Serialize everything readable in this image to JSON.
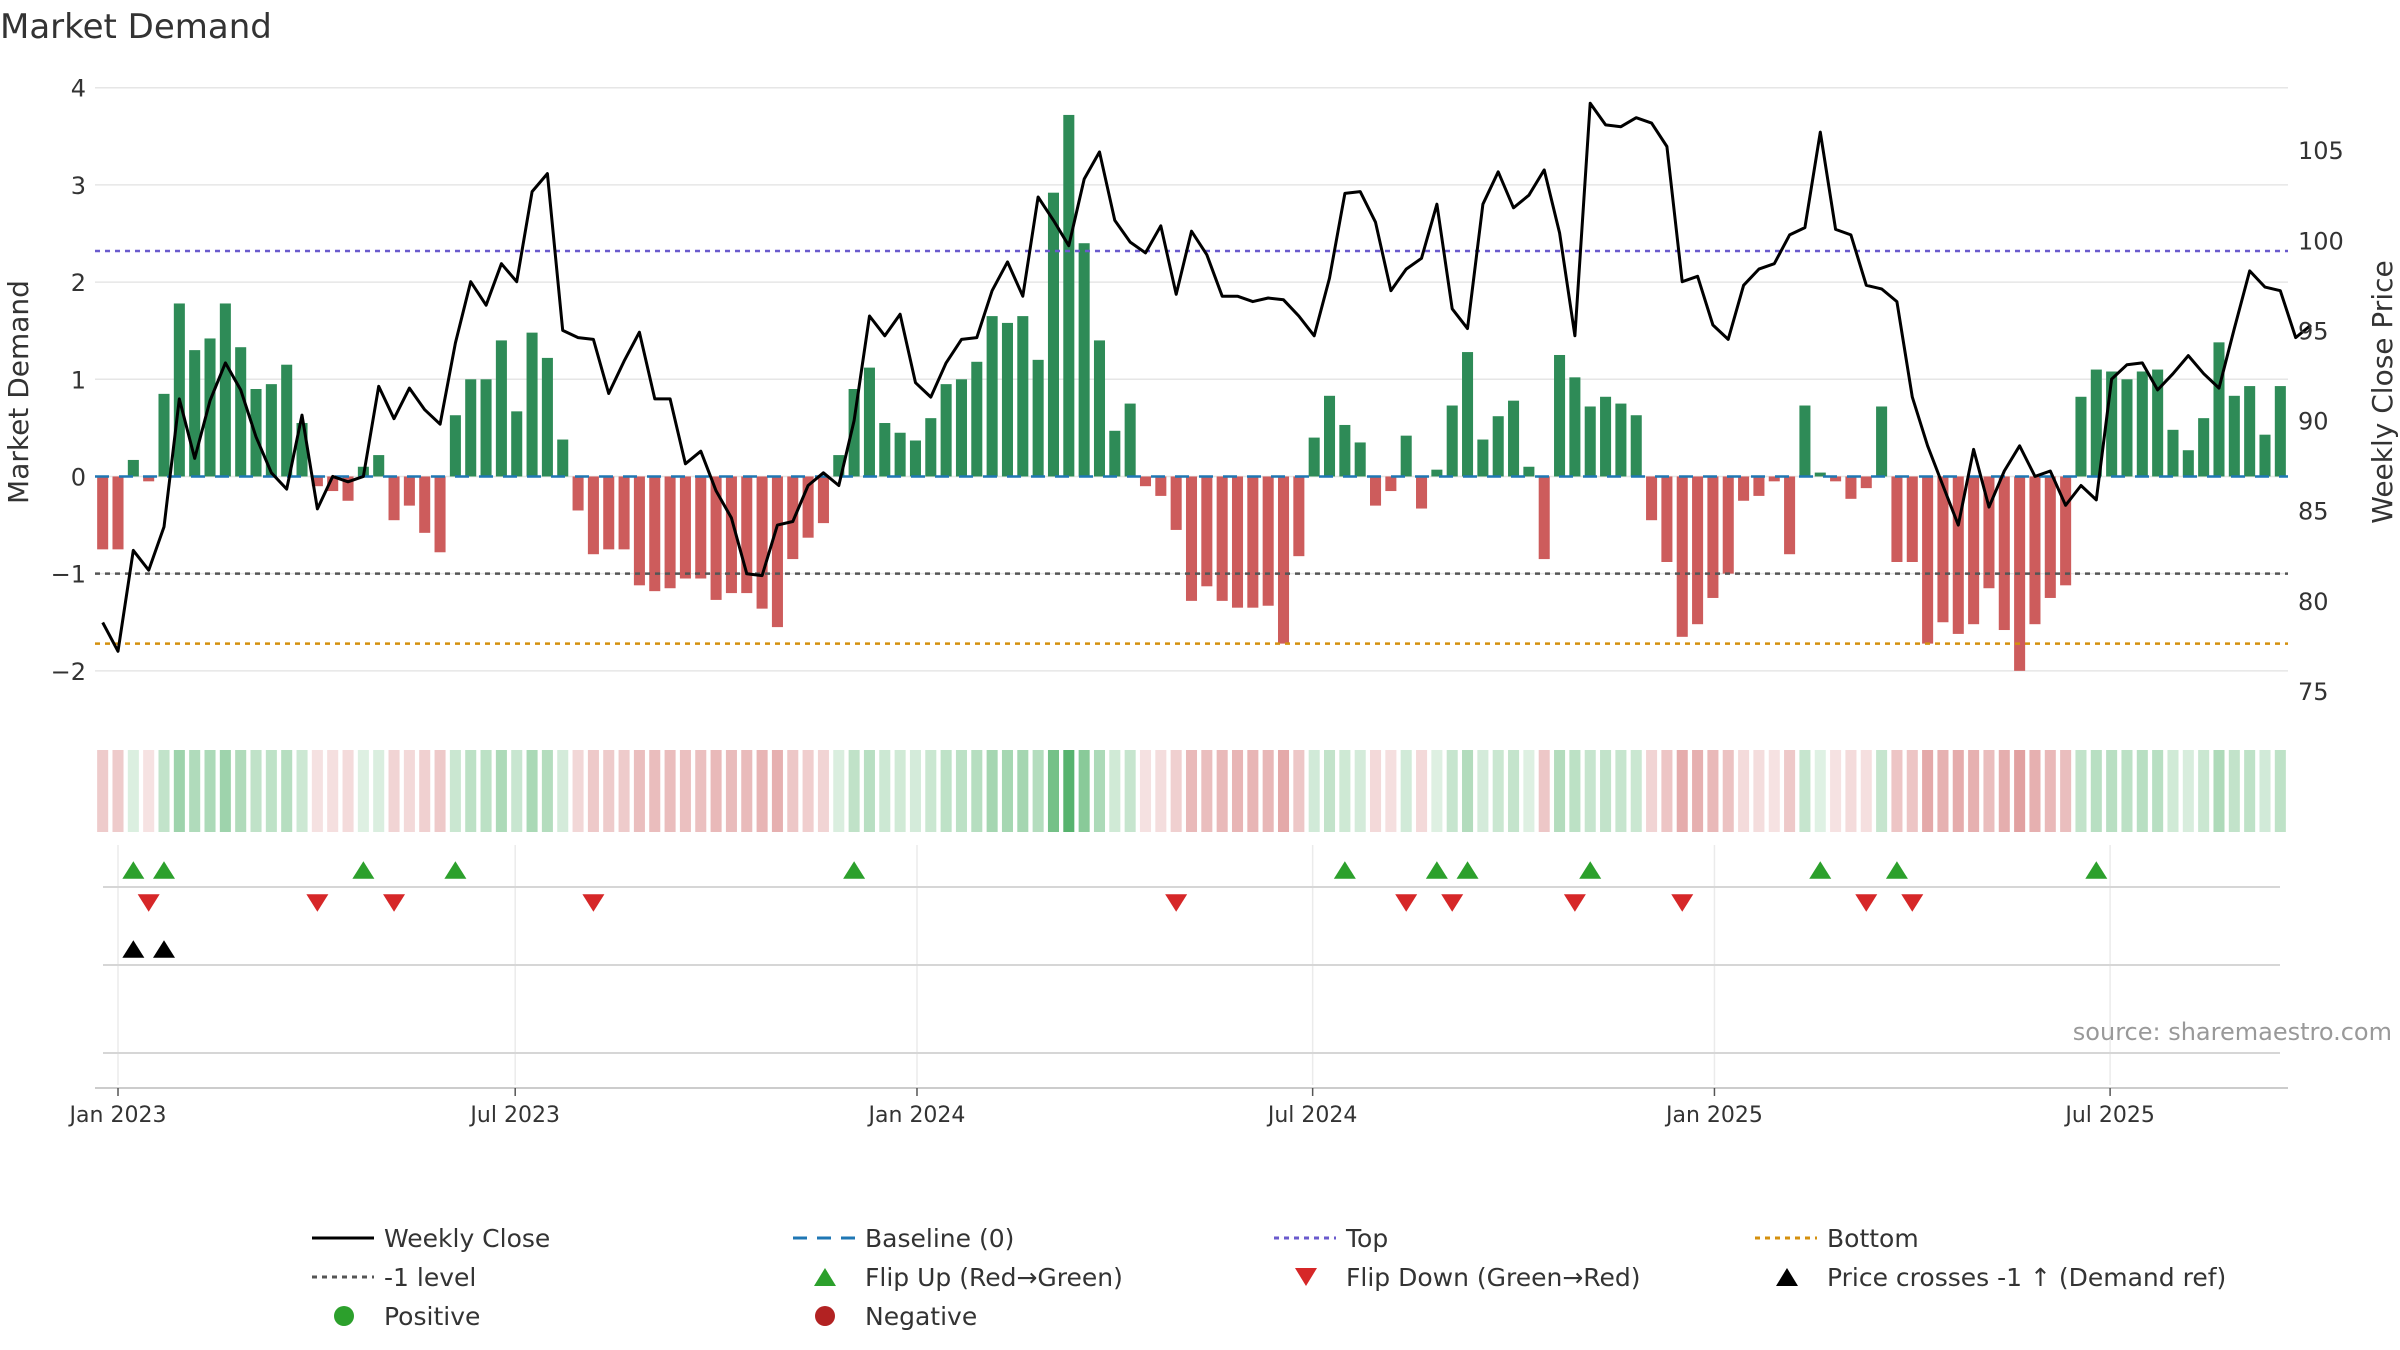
{
  "chart_data": {
    "type": "bar",
    "title": "Market Demand",
    "ylabel": "Market Demand",
    "ylabel_right": "Weekly Close Price",
    "ylim": [
      -2.3,
      4.1
    ],
    "ylim_right": [
      74.5,
      109
    ],
    "yticks": [
      -2,
      -1,
      0,
      1,
      2,
      3,
      4
    ],
    "yticks_right": [
      75,
      80,
      85,
      90,
      95,
      100,
      105
    ],
    "yticks_labels": [
      "−2",
      "−1",
      "0",
      "1",
      "2",
      "3",
      "4"
    ],
    "x_start": "2022-12-25",
    "x_step_weeks": 1,
    "x_ticks": [
      {
        "label": "Jan 2023",
        "week": 1.0
      },
      {
        "label": "Jul 2023",
        "week": 26.9
      },
      {
        "label": "Jan 2024",
        "week": 53.1
      },
      {
        "label": "Jul 2024",
        "week": 78.9
      },
      {
        "label": "Jan 2025",
        "week": 105.1
      },
      {
        "label": "Jul 2025",
        "week": 130.9
      }
    ],
    "demand": [
      -0.75,
      -0.75,
      0.17,
      -0.05,
      0.85,
      1.78,
      1.3,
      1.42,
      1.78,
      1.33,
      0.9,
      0.95,
      1.15,
      0.55,
      -0.1,
      -0.15,
      -0.25,
      0.1,
      0.22,
      -0.45,
      -0.3,
      -0.58,
      -0.78,
      0.63,
      1.0,
      1.0,
      1.4,
      0.67,
      1.48,
      1.22,
      0.38,
      -0.35,
      -0.8,
      -0.75,
      -0.75,
      -1.12,
      -1.18,
      -1.15,
      -1.05,
      -1.05,
      -1.27,
      -1.2,
      -1.2,
      -1.36,
      -1.55,
      -0.85,
      -0.63,
      -0.48,
      0.22,
      0.9,
      1.12,
      0.55,
      0.45,
      0.37,
      0.6,
      0.95,
      1.0,
      1.18,
      1.65,
      1.58,
      1.65,
      1.2,
      2.92,
      3.72,
      2.4,
      1.4,
      0.47,
      0.75,
      -0.1,
      -0.2,
      -0.55,
      -1.28,
      -1.13,
      -1.28,
      -1.35,
      -1.35,
      -1.33,
      -1.72,
      -0.82,
      0.4,
      0.83,
      0.53,
      0.35,
      -0.3,
      -0.15,
      0.42,
      -0.33,
      0.07,
      0.73,
      1.28,
      0.38,
      0.62,
      0.78,
      0.1,
      -0.85,
      1.25,
      1.02,
      0.72,
      0.82,
      0.75,
      0.63,
      -0.45,
      -0.88,
      -1.65,
      -1.52,
      -1.25,
      -1.0,
      -0.25,
      -0.2,
      -0.05,
      -0.8,
      0.73,
      0.04,
      -0.05,
      -0.23,
      -0.12,
      0.72,
      -0.88,
      -0.88,
      -1.72,
      -1.5,
      -1.62,
      -1.52,
      -1.15,
      -1.58,
      -2.0,
      -1.52,
      -1.25,
      -1.12,
      0.82,
      1.1,
      1.08,
      1.0,
      1.08,
      1.1,
      0.48,
      0.27,
      0.6,
      1.38,
      0.83,
      0.93,
      0.43,
      0.93
    ],
    "close": [
      78.8,
      77.2,
      82.8,
      81.7,
      84.1,
      91.2,
      87.9,
      91.1,
      93.2,
      91.7,
      89.1,
      87.1,
      86.2,
      90.3,
      85.1,
      86.9,
      86.6,
      86.9,
      91.9,
      90.1,
      91.8,
      90.6,
      89.8,
      94.3,
      97.7,
      96.4,
      98.7,
      97.7,
      102.7,
      103.7,
      95.0,
      94.6,
      94.5,
      91.5,
      93.3,
      94.9,
      91.2,
      91.2,
      87.6,
      88.3,
      86.1,
      84.6,
      81.5,
      81.4,
      84.2,
      84.4,
      86.4,
      87.1,
      86.4,
      90.0,
      95.8,
      94.7,
      95.9,
      92.1,
      91.3,
      93.2,
      94.5,
      94.6,
      97.2,
      98.8,
      96.9,
      102.4,
      101.1,
      99.7,
      103.4,
      104.9,
      101.1,
      99.9,
      99.3,
      100.8,
      97.0,
      100.5,
      99.2,
      96.9,
      96.9,
      96.6,
      96.8,
      96.7,
      95.8,
      94.7,
      97.9,
      102.6,
      102.7,
      101.0,
      97.2,
      98.4,
      99.0,
      102.0,
      96.2,
      95.1,
      102.0,
      103.8,
      101.8,
      102.5,
      103.9,
      100.4,
      94.7,
      107.6,
      106.4,
      106.3,
      106.8,
      106.5,
      105.2,
      97.7,
      98.0,
      95.3,
      94.5,
      97.5,
      98.4,
      98.7,
      100.3,
      100.7,
      106.0,
      100.6,
      100.3,
      97.5,
      97.3,
      96.6,
      91.3,
      88.6,
      86.4,
      84.2,
      88.4,
      85.2,
      87.2,
      88.6,
      86.9,
      87.2,
      85.3,
      86.4,
      85.6,
      92.3,
      93.1,
      93.2,
      91.7,
      92.6,
      93.6,
      92.6,
      91.8,
      95.1,
      98.3,
      97.4,
      97.2,
      94.6,
      95.3
    ],
    "heat_strips": [
      -0.75,
      -0.75,
      0.17,
      -0.05,
      0.85,
      1.78,
      1.3,
      1.42,
      1.78,
      1.33,
      0.9,
      0.95,
      1.15,
      0.55,
      -0.1,
      -0.15,
      -0.25,
      0.1,
      0.22,
      -0.45,
      -0.3,
      -0.58,
      -0.78,
      0.63,
      1.0,
      1.0,
      1.4,
      0.67,
      1.48,
      1.22,
      0.38,
      -0.35,
      -0.8,
      -0.75,
      -0.75,
      -1.12,
      -1.18,
      -1.15,
      -1.05,
      -1.05,
      -1.27,
      -1.2,
      -1.2,
      -1.36,
      -1.55,
      -0.85,
      -0.63,
      -0.48,
      0.22,
      0.9,
      1.12,
      0.55,
      0.45,
      0.37,
      0.6,
      0.95,
      1.0,
      1.18,
      1.65,
      1.58,
      1.65,
      1.2,
      2.92,
      3.72,
      2.4,
      1.4,
      0.47,
      0.75,
      -0.1,
      -0.2,
      -0.55,
      -1.28,
      -1.13,
      -1.28,
      -1.35,
      -1.35,
      -1.33,
      -1.72,
      -0.82,
      0.4,
      0.83,
      0.53,
      0.35,
      -0.3,
      -0.15,
      0.42,
      -0.33,
      0.07,
      0.73,
      1.28,
      0.38,
      0.62,
      0.78,
      0.1,
      -0.85,
      1.25,
      1.02,
      0.72,
      0.82,
      0.75,
      0.63,
      -0.45,
      -0.88,
      -1.65,
      -1.52,
      -1.25,
      -1.0,
      -0.25,
      -0.2,
      -0.05,
      -0.8,
      0.73,
      0.04,
      -0.05,
      -0.23,
      -0.12,
      0.72,
      -0.88,
      -0.88,
      -1.72,
      -1.5,
      -1.62,
      -1.52,
      -1.15,
      -1.58,
      -2.0,
      -1.52,
      -1.25,
      -1.12,
      0.82,
      1.1,
      1.08,
      1.0,
      1.08,
      1.1,
      0.48,
      0.27,
      0.6,
      1.38,
      0.83,
      0.93,
      0.43,
      0.93
    ],
    "levels": {
      "baseline": 0,
      "top": 2.32,
      "minus_one": -1,
      "bottom": -1.72
    },
    "flip_up_weeks": [
      2,
      4,
      17,
      23,
      49,
      81,
      87,
      89,
      97,
      112,
      117,
      130
    ],
    "flip_down_weeks": [
      3,
      14,
      19,
      32,
      70,
      85,
      88,
      96,
      103,
      115,
      118
    ],
    "price_cross_weeks": [
      2,
      4
    ],
    "source": "source: sharemaestro.com",
    "legend_position": "bottom",
    "legend": [
      {
        "label": "Weekly Close",
        "kind": "line",
        "color": "#000000"
      },
      {
        "label": "Baseline (0)",
        "kind": "dash",
        "color": "#1f77b4"
      },
      {
        "label": "Top",
        "kind": "dot",
        "color": "#6a5acd"
      },
      {
        "label": "Bottom",
        "kind": "dot",
        "color": "#d4900e"
      },
      {
        "label": "-1 level",
        "kind": "dot",
        "color": "#555555"
      },
      {
        "label": "Flip Up (Red→Green)",
        "kind": "tri-up",
        "color": "#2ca02c"
      },
      {
        "label": "Flip Down (Green→Red)",
        "kind": "tri-down",
        "color": "#d62728"
      },
      {
        "label": "Price crosses -1 ↑ (Demand ref)",
        "kind": "tri-up",
        "color": "#000000"
      },
      {
        "label": "Positive",
        "kind": "circle",
        "color": "#2ca02c"
      },
      {
        "label": "Negative",
        "kind": "circle",
        "color": "#b22222"
      }
    ],
    "colors": {
      "positive": "#2e8b57",
      "negative": "#cd5c5c",
      "line": "#000000",
      "grid": "#e6e6e6"
    }
  }
}
